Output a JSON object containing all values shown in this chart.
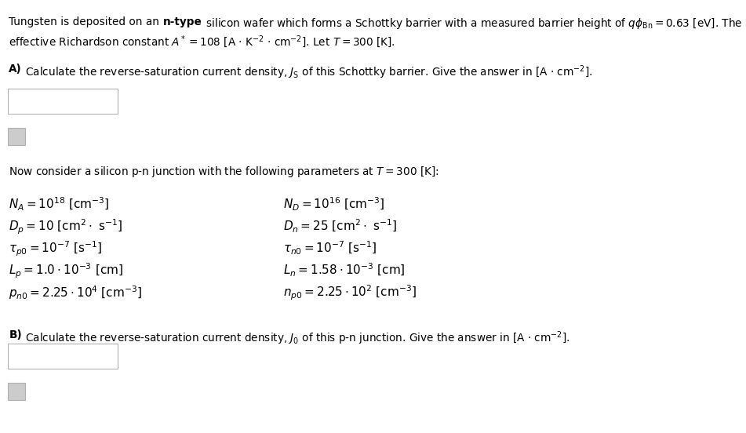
{
  "background_color": "#ffffff",
  "figsize": [
    9.51,
    5.52
  ],
  "dpi": 100,
  "text_color": "#000000",
  "box_edge_color": "#b0b0b0",
  "box_color": "#ffffff",
  "small_box_color": "#cccccc",
  "font_size_main": 9.8,
  "font_size_params": 11.0,
  "font_size_bold": 9.8,
  "params_left": [
    "$N_A = 10^{18}$ [cm$^{-3}$]",
    "$D_p = 10$ [cm$^2 \\cdot$ s$^{-1}$]",
    "$\\tau_{p0} = 10^{-7}$ [s$^{-1}$]",
    "$L_p = 1.0 \\cdot 10^{-3}$ [cm]",
    "$p_{n0} = 2.25 \\cdot 10^{4}$ [cm$^{-3}$]"
  ],
  "params_right": [
    "$N_D = 10^{16}$ [cm$^{-3}$]",
    "$D_n = 25$ [cm$^2 \\cdot$ s$^{-1}$]",
    "$\\tau_{n0} = 10^{-7}$ [s$^{-1}$]",
    "$L_n = 1.58 \\cdot 10^{-3}$ [cm]",
    "$n_{p0} = 2.25 \\cdot 10^{2}$ [cm$^{-3}$]"
  ]
}
